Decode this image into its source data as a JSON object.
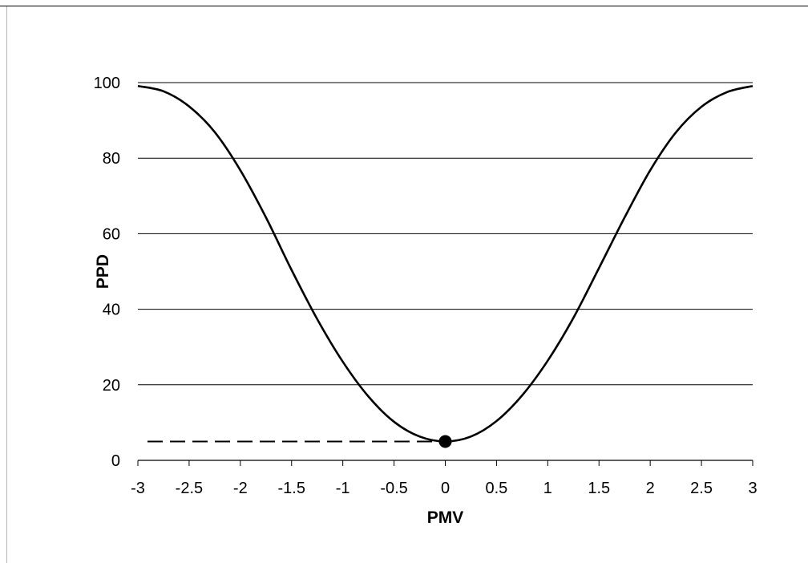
{
  "chart_data": {
    "type": "line",
    "title": "",
    "xlabel": "PMV",
    "ylabel": "PPD",
    "xlim": [
      -3,
      3
    ],
    "ylim": [
      0,
      100
    ],
    "x_ticks": [
      "-3",
      "-2.5",
      "-2",
      "-1.5",
      "-1",
      "-0.5",
      "0",
      "0.5",
      "1",
      "1.5",
      "2",
      "2.5",
      "3"
    ],
    "y_ticks": [
      "0",
      "20",
      "40",
      "60",
      "80",
      "100"
    ],
    "grid": "horizontal",
    "legend": "none",
    "series": [
      {
        "x": [
          -3,
          -2.75,
          -2.5,
          -2.25,
          -2,
          -1.75,
          -1.5,
          -1.25,
          -1,
          -0.75,
          -0.5,
          -0.25,
          0,
          0.25,
          0.5,
          0.75,
          1,
          1.25,
          1.5,
          1.75,
          2,
          2.25,
          2.5,
          2.75,
          3
        ],
        "y": [
          99.1,
          97.7,
          93.7,
          86.9,
          76.8,
          64.3,
          50.4,
          37.4,
          26.1,
          16.9,
          10.2,
          6.3,
          5.0,
          6.3,
          10.4,
          17.2,
          26.4,
          37.7,
          50.9,
          64.3,
          76.8,
          86.8,
          93.6,
          97.5,
          99.1
        ]
      }
    ],
    "marker": {
      "x": 0,
      "y": 5
    },
    "reference_line": {
      "style": "dashed",
      "y": 5,
      "x_from": -3,
      "x_to": 0
    },
    "colors": {
      "line": "#000000",
      "grid": "#000000",
      "marker": "#000000"
    }
  }
}
